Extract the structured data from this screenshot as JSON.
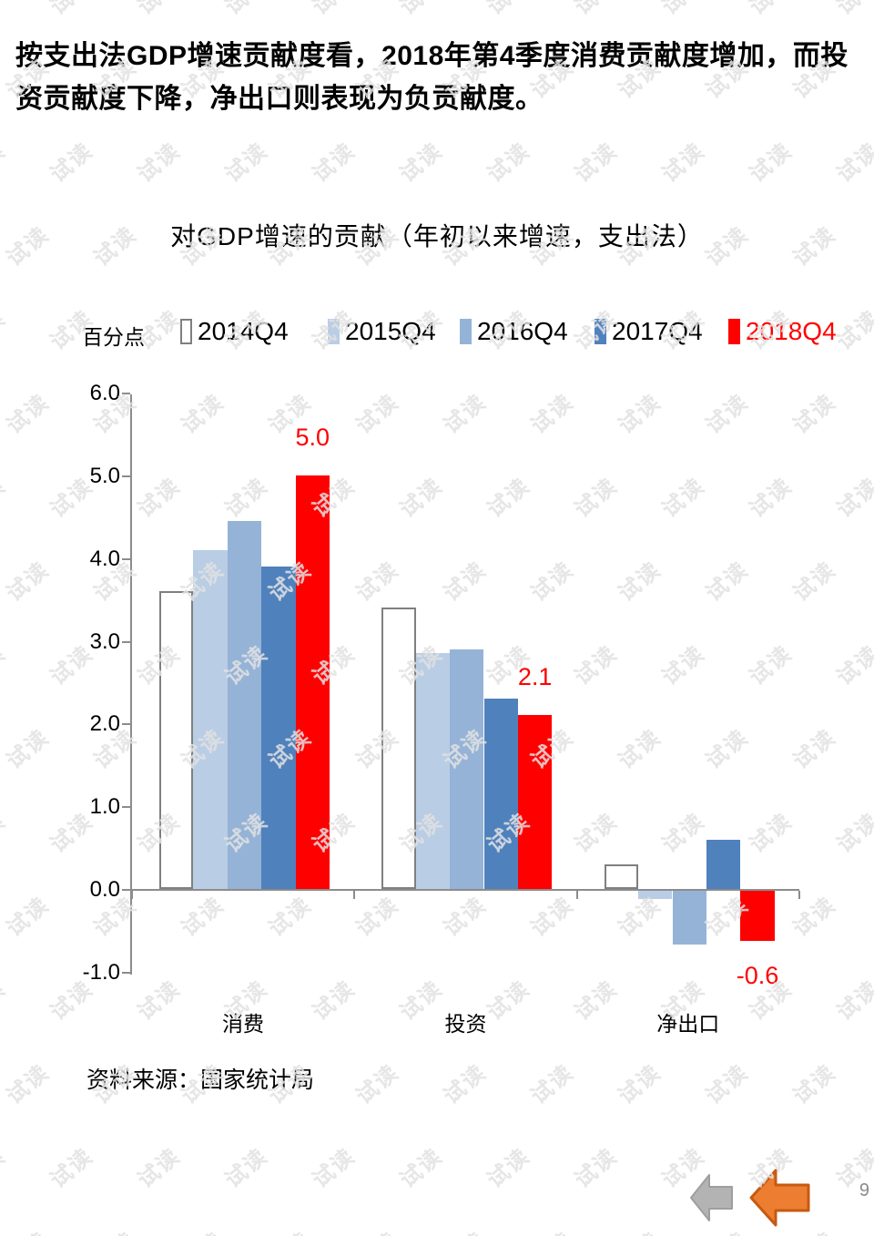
{
  "watermark": {
    "text": "试读"
  },
  "headline": {
    "text": "按支出法GDP增速贡献度看，2018年第4季度消费贡献度增加，而投资贡献度下降，净出口则表现为负贡献度。"
  },
  "chart": {
    "source": "资料来源：国家统计局"
  },
  "chart_data": {
    "type": "bar",
    "title": "对GDP增速的贡献（年初以来增速，支出法）",
    "ylabel": "百分点",
    "xlabel": "",
    "categories": [
      "消费",
      "投资",
      "净出口"
    ],
    "series": [
      {
        "name": "2014Q4",
        "color": "#FFFFFF",
        "border": "#7F7F7F",
        "name_color": "#000000",
        "values": [
          3.6,
          3.4,
          0.3
        ]
      },
      {
        "name": "2015Q4",
        "color": "#B9CDE5",
        "name_color": "#000000",
        "values": [
          4.1,
          2.85,
          -0.1
        ]
      },
      {
        "name": "2016Q4",
        "color": "#95B3D7",
        "name_color": "#000000",
        "values": [
          4.45,
          2.9,
          -0.65
        ]
      },
      {
        "name": "2017Q4",
        "color": "#4F81BD",
        "name_color": "#000000",
        "values": [
          3.9,
          2.3,
          0.6
        ]
      },
      {
        "name": "2018Q4",
        "color": "#FF0000",
        "name_color": "#FF0000",
        "values": [
          5.0,
          2.1,
          -0.6
        ]
      }
    ],
    "point_labels": [
      {
        "category": 0,
        "series": 4,
        "text": "5.0",
        "placement": "above",
        "color": "#FF0000"
      },
      {
        "category": 1,
        "series": 4,
        "text": "2.1",
        "placement": "above",
        "color": "#FF0000"
      },
      {
        "category": 2,
        "series": 4,
        "text": "-0.6",
        "placement": "below",
        "color": "#FF0000"
      }
    ],
    "ylim": [
      -1.0,
      6.0
    ],
    "ytick_step": 1.0,
    "yticks": [
      "6.0",
      "5.0",
      "4.0",
      "3.0",
      "2.0",
      "1.0",
      "0.0",
      "-1.0"
    ],
    "legend_position": "top",
    "grid": false,
    "axis_color": "#8C8C8C"
  },
  "footer": {
    "page_number": "9"
  },
  "nav": {
    "back_arrow_color": "#B3B3B3",
    "back_arrow_border": "#9E9E9E",
    "forward_arrow_color": "#ED7D31",
    "forward_arrow_border": "#C55A11"
  }
}
